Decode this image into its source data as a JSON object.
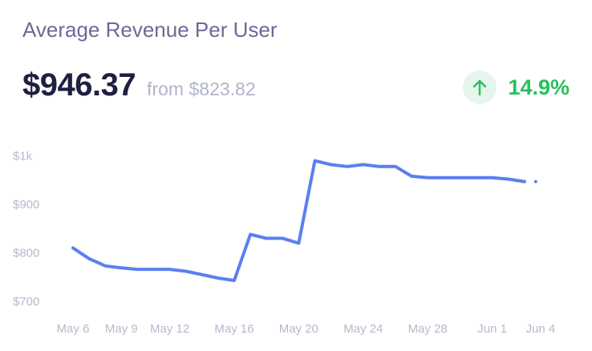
{
  "card": {
    "title": "Average Revenue Per User",
    "value": "$946.37",
    "from_text": "from $823.82",
    "change_pct": "14.9%",
    "change_direction": "up",
    "arrow_icon": "arrow-up-icon"
  },
  "colors": {
    "line": "#5b7ff0",
    "positive": "#26c15b",
    "positive_bg": "#e6f6ec",
    "title": "#6b6a96",
    "value": "#1f2040",
    "muted": "#b1b4cc"
  },
  "chart_data": {
    "type": "line",
    "title": "",
    "xlabel": "",
    "ylabel": "",
    "ylim": [
      680,
      1000
    ],
    "y_ticks": [
      1000,
      900,
      800,
      700
    ],
    "y_tick_labels": [
      "$1k",
      "$900",
      "$800",
      "$700"
    ],
    "x_tick_labels": [
      "May 6",
      "May 9",
      "May 12",
      "May 16",
      "May 20",
      "May 24",
      "May 28",
      "Jun 1",
      "Jun 4"
    ],
    "x_tick_values": [
      0,
      3,
      6,
      10,
      14,
      18,
      22,
      26,
      29
    ],
    "x": [
      0,
      1,
      2,
      3,
      4,
      5,
      6,
      7,
      8,
      9,
      10,
      11,
      12,
      13,
      14,
      15,
      16,
      17,
      18,
      19,
      20,
      21,
      22,
      23,
      24,
      25,
      26,
      27,
      28,
      29
    ],
    "values": [
      810,
      788,
      773,
      769,
      766,
      766,
      766,
      762,
      755,
      748,
      743,
      838,
      830,
      830,
      820,
      990,
      982,
      978,
      982,
      978,
      978,
      958,
      955,
      955,
      955,
      955,
      955,
      952,
      947,
      947
    ],
    "dashed_last_segment": true
  }
}
